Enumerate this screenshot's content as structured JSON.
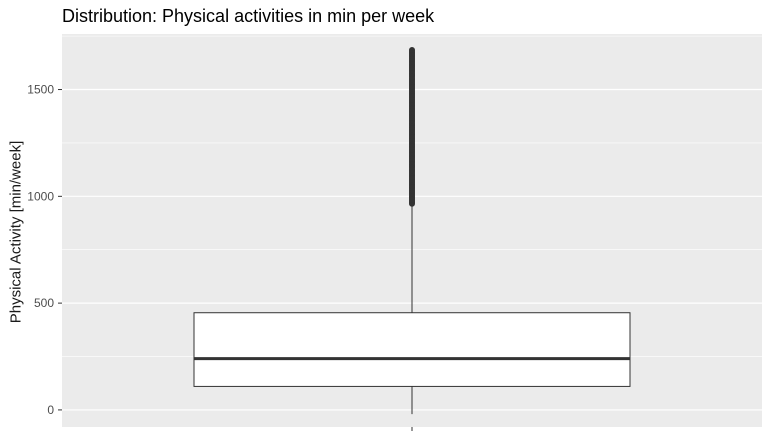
{
  "chart_data": {
    "type": "boxplot",
    "title": "Distribution: Physical activities in min per week",
    "xlabel": "",
    "ylabel": "Physical Activity [min/week]",
    "ylim": [
      -80,
      1760
    ],
    "yticks": [
      0,
      500,
      1000,
      1500
    ],
    "grid": true,
    "legend": "none",
    "box": {
      "min": -20,
      "q1": 110,
      "median": 240,
      "q3": 455,
      "whisker_high": 965,
      "outliers_from": 965,
      "outliers_to": 1685
    },
    "colors": {
      "panel": "#ebebeb",
      "grid": "#ffffff",
      "box_fill": "#ffffff",
      "line": "#333333"
    }
  }
}
